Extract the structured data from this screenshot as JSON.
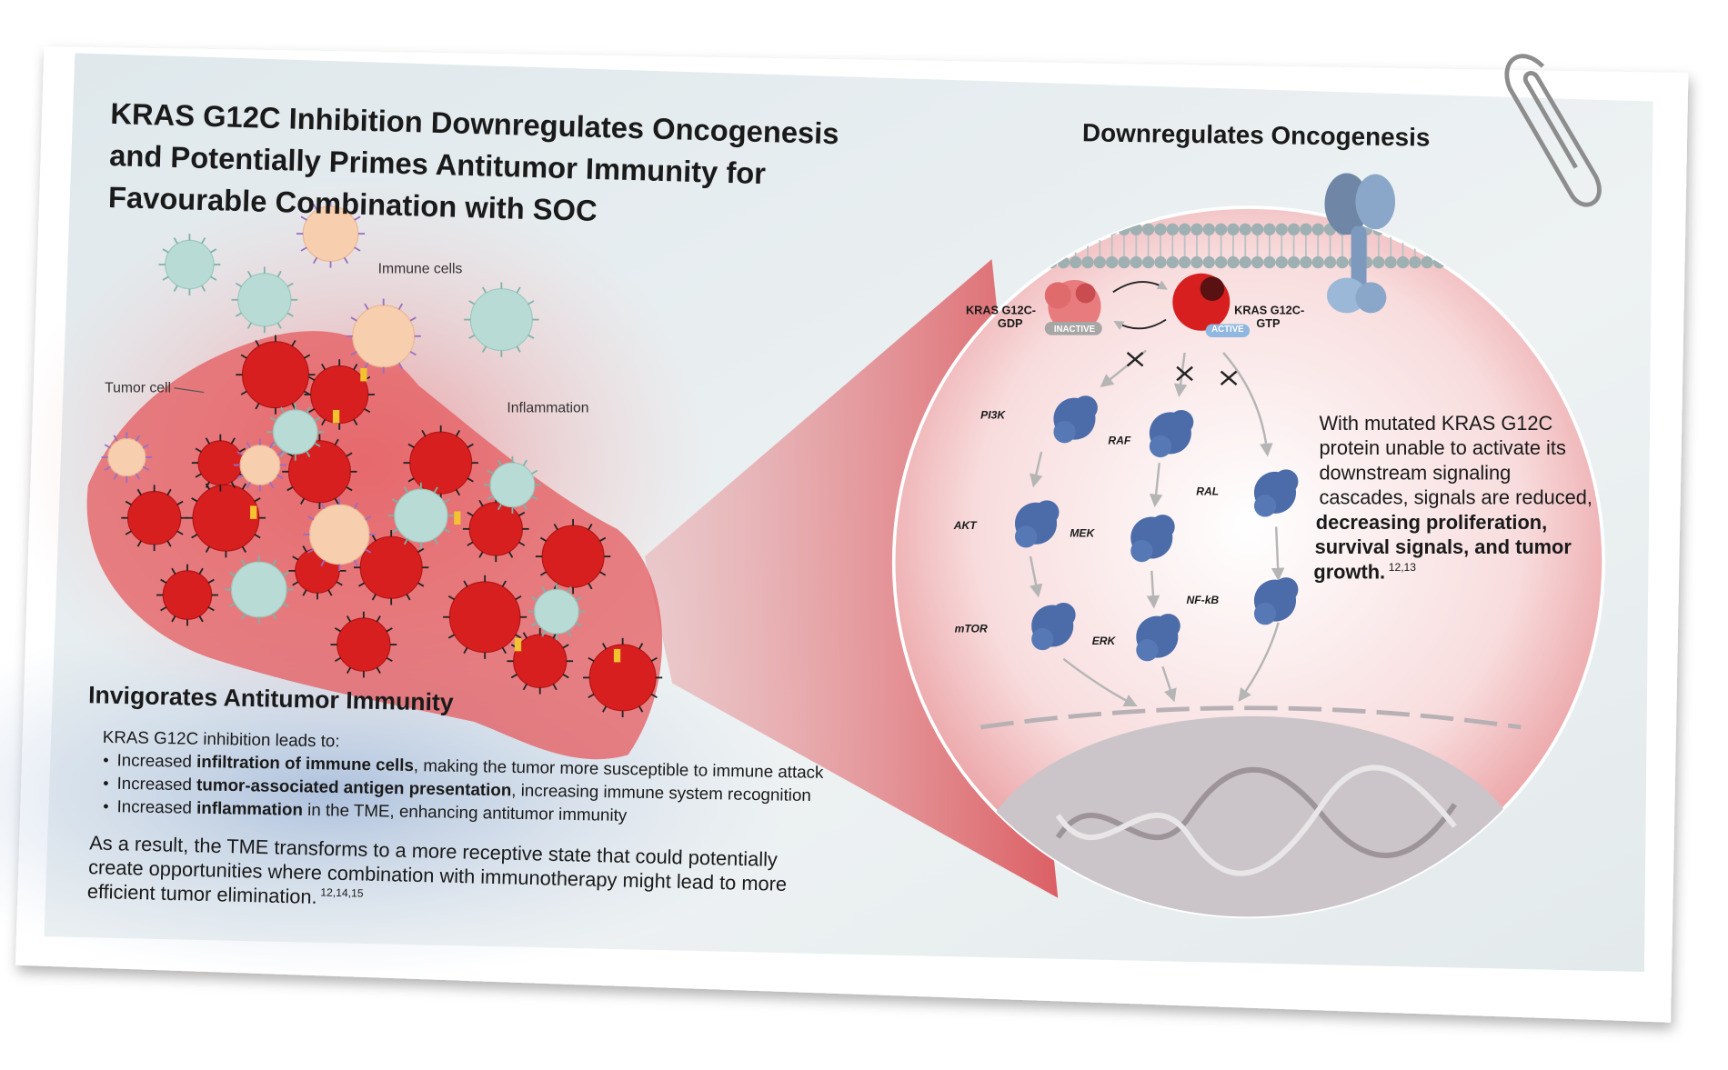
{
  "header": {
    "title_lines": [
      "KRAS G12C Inhibition Downregulates Oncogenesis",
      "and Potentially Primes Antitumor Immunity for",
      "Favourable Combination with SOC"
    ]
  },
  "immune_panel": {
    "labels": {
      "immune_cells": "Immune cells",
      "tumor_cell": "Tumor cell",
      "inflammation": "Inflammation"
    },
    "heading": "Invigorates Antitumor Immunity",
    "intro": "KRAS G12C inhibition leads to:",
    "bullets": [
      [
        "Increased ",
        "infiltration of immune cells",
        ", making the tumor more susceptible to immune attack"
      ],
      [
        "Increased ",
        "tumor-associated antigen presentation",
        ", increasing immune system recognition"
      ],
      [
        "Increased ",
        "inflammation",
        " in the TME, enhancing antitumor immunity"
      ]
    ],
    "conclusion_lines": [
      "As a result, the TME transforms to a more receptive state that could potentially",
      "create opportunities where combination with immunotherapy might lead to more",
      "efficient tumor elimination."
    ],
    "conclusion_reference": "12,14,15"
  },
  "oncogenesis_panel": {
    "heading": "Downregulates Oncogenesis",
    "kras": [
      {
        "label_lines": [
          "KRAS G12C-",
          "GDP"
        ],
        "state": "INACTIVE"
      },
      {
        "label_lines": [
          "KRAS G12C-",
          "GTP"
        ],
        "state": "ACTIVE"
      }
    ],
    "nodes": [
      {
        "label": "PI3K"
      },
      {
        "label": "AKT"
      },
      {
        "label": "mTOR"
      },
      {
        "label": "RAF"
      },
      {
        "label": "MEK"
      },
      {
        "label": "ERK"
      },
      {
        "label": "RAL"
      },
      {
        "label": "NF-kB"
      }
    ],
    "text_lines": [
      "With mutated KRAS G12C",
      "protein unable to activate its",
      "downstream signaling",
      "cascades, signals are reduced,"
    ],
    "emphasis_lines": [
      "decreasing proliferation,",
      "survival signals, and tumor",
      "growth."
    ],
    "reference": "12,13"
  }
}
